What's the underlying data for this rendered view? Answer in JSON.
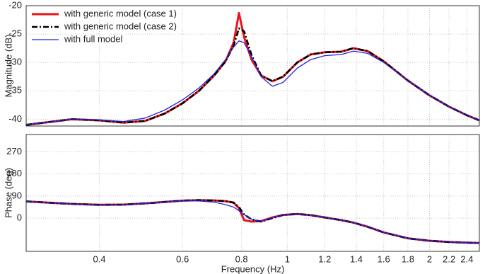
{
  "chart_data": [
    {
      "type": "line",
      "ylabel": "Magnitude (dB)",
      "log_x": true,
      "grid": true,
      "legend": "upper left",
      "xlim": [
        0.28,
        2.55
      ],
      "ylim": [
        -41.2,
        -20
      ],
      "xticks": [
        0.4,
        0.6,
        0.8,
        1,
        1.2,
        1.4,
        1.6,
        1.8,
        2,
        2.2,
        2.4
      ],
      "yticks": [
        -20,
        -25,
        -30,
        -35,
        -40
      ],
      "x": [
        0.28,
        0.32,
        0.35,
        0.4,
        0.45,
        0.5,
        0.55,
        0.6,
        0.65,
        0.7,
        0.74,
        0.77,
        0.79,
        0.81,
        0.84,
        0.88,
        0.93,
        0.98,
        1.05,
        1.12,
        1.2,
        1.3,
        1.38,
        1.48,
        1.6,
        1.8,
        2.0,
        2.2,
        2.4,
        2.55
      ],
      "series": [
        {
          "name": "with generic model (case 1)",
          "color": "#e8141b",
          "style": "solid",
          "values": [
            -41.0,
            -40.4,
            -40.0,
            -40.2,
            -40.6,
            -40.3,
            -39.0,
            -37.2,
            -35.0,
            -32.3,
            -29.8,
            -26.5,
            -21.3,
            -25.5,
            -29.5,
            -32.3,
            -33.3,
            -32.5,
            -30.0,
            -28.6,
            -28.2,
            -28.1,
            -27.5,
            -28.0,
            -29.8,
            -33.2,
            -35.8,
            -37.8,
            -39.3,
            -40.2
          ]
        },
        {
          "name": "with generic model (case 2)",
          "color": "#000000",
          "style": "dashdot",
          "values": [
            -41.0,
            -40.4,
            -40.0,
            -40.2,
            -40.6,
            -40.3,
            -39.0,
            -37.2,
            -35.0,
            -32.3,
            -29.8,
            -27.0,
            -24.0,
            -24.5,
            -28.7,
            -32.3,
            -33.3,
            -32.5,
            -30.0,
            -28.6,
            -28.2,
            -28.1,
            -27.5,
            -28.0,
            -29.8,
            -33.2,
            -35.8,
            -37.8,
            -39.3,
            -40.2
          ]
        },
        {
          "name": "with full model",
          "color": "#1f23d9",
          "style": "thin",
          "values": [
            -41.0,
            -40.4,
            -40.0,
            -40.1,
            -40.4,
            -39.8,
            -38.4,
            -36.6,
            -34.5,
            -32.0,
            -29.5,
            -27.3,
            -26.2,
            -26.5,
            -29.0,
            -32.5,
            -34.2,
            -33.5,
            -31.0,
            -29.5,
            -28.8,
            -28.6,
            -28.0,
            -28.4,
            -30.0,
            -33.2,
            -35.8,
            -37.8,
            -39.3,
            -40.2
          ]
        }
      ]
    },
    {
      "type": "line",
      "ylabel": "Phase (deg)",
      "xlabel": "Frequency  (Hz)",
      "log_x": true,
      "grid": true,
      "xlim": [
        0.28,
        2.55
      ],
      "ylim": [
        -135,
        340
      ],
      "xticks": [
        0.4,
        0.6,
        0.8,
        1,
        1.2,
        1.4,
        1.6,
        1.8,
        2,
        2.2,
        2.4
      ],
      "yticks": [
        0,
        90,
        180,
        270
      ],
      "x": [
        0.28,
        0.32,
        0.35,
        0.4,
        0.45,
        0.5,
        0.55,
        0.6,
        0.65,
        0.7,
        0.74,
        0.77,
        0.79,
        0.81,
        0.84,
        0.88,
        0.93,
        0.98,
        1.05,
        1.12,
        1.2,
        1.3,
        1.38,
        1.48,
        1.6,
        1.8,
        2.0,
        2.2,
        2.4,
        2.55
      ],
      "series": [
        {
          "color": "#e8141b",
          "style": "solid",
          "values": [
            68,
            62,
            58,
            54,
            55,
            60,
            66,
            71,
            73,
            72,
            69,
            63,
            40,
            -8,
            -14,
            -12,
            3,
            13,
            17,
            12,
            3,
            -8,
            -18,
            -35,
            -58,
            -82,
            -92,
            -97,
            -100,
            -101
          ]
        },
        {
          "color": "#000000",
          "style": "dashdot",
          "values": [
            68,
            62,
            58,
            54,
            55,
            60,
            66,
            71,
            73,
            72,
            69,
            63,
            45,
            15,
            -5,
            -14,
            0,
            13,
            17,
            12,
            3,
            -8,
            -18,
            -35,
            -58,
            -82,
            -92,
            -97,
            -100,
            -101
          ]
        },
        {
          "color": "#1f23d9",
          "style": "thin",
          "values": [
            68,
            62,
            58,
            54,
            55,
            60,
            66,
            70,
            70,
            65,
            55,
            45,
            30,
            15,
            -5,
            -13,
            2,
            13,
            17,
            12,
            3,
            -8,
            -18,
            -35,
            -58,
            -82,
            -92,
            -97,
            -100,
            -101
          ]
        }
      ]
    }
  ]
}
